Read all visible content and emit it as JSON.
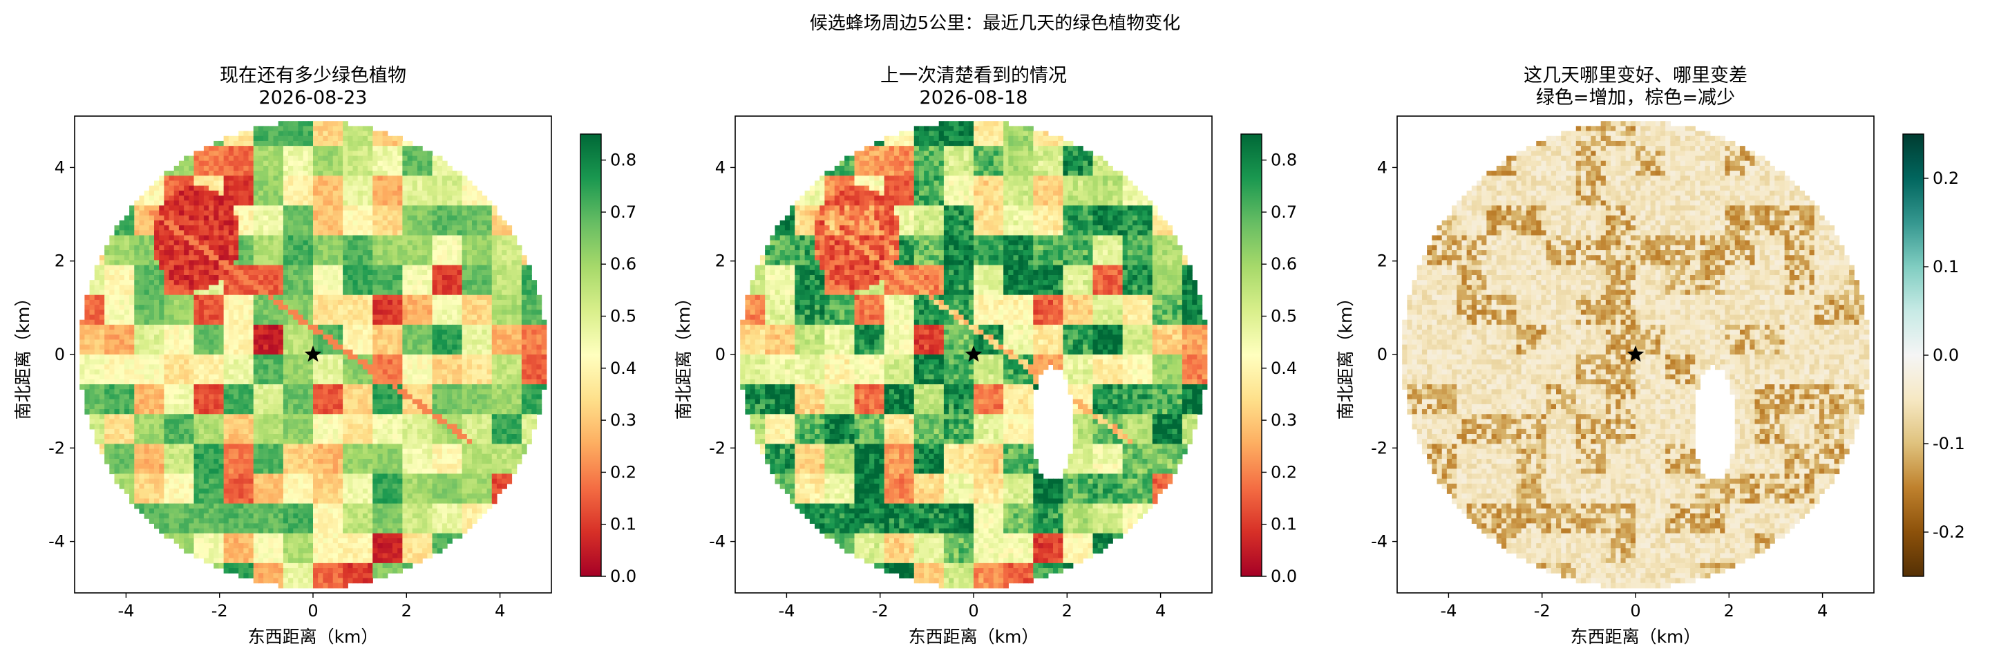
{
  "figure": {
    "suptitle": "候选蜂场周边5公里：最近几天的绿色植物变化"
  },
  "chart_data": [
    {
      "type": "heatmap",
      "title": "现在还有多少绿色植物",
      "subtitle": "2026-08-23",
      "xlabel": "东西距离（km）",
      "ylabel": "南北距离（km）",
      "xlim": [
        -5.1,
        5.1
      ],
      "ylim": [
        -5.1,
        5.1
      ],
      "xticks": [
        -4,
        -2,
        0,
        2,
        4
      ],
      "yticks": [
        -4,
        -2,
        0,
        2,
        4
      ],
      "xtick_labels": [
        "-4",
        "-2",
        "0",
        "2",
        "4"
      ],
      "ytick_labels": [
        "-4",
        "-2",
        "0",
        "2",
        "4"
      ],
      "radius_km": 5,
      "center_marker": {
        "x": 0,
        "y": 0,
        "symbol": "star"
      },
      "colormap": "RdYlGn",
      "colorbar": {
        "vmin": 0.0,
        "vmax": 0.85,
        "ticks": [
          0.0,
          0.1,
          0.2,
          0.3,
          0.4,
          0.5,
          0.6,
          0.7,
          0.8
        ],
        "tick_labels": [
          "0.0",
          "0.1",
          "0.2",
          "0.3",
          "0.4",
          "0.5",
          "0.6",
          "0.7",
          "0.8"
        ],
        "colors": [
          "#a50026",
          "#d73027",
          "#f46d43",
          "#fdae61",
          "#fee08b",
          "#ffffbf",
          "#d9ef8b",
          "#a6d96a",
          "#66bd63",
          "#1a9850",
          "#006837"
        ]
      },
      "grid": false
    },
    {
      "type": "heatmap",
      "title": "上一次清楚看到的情况",
      "subtitle": "2026-08-18",
      "xlabel": "东西距离（km）",
      "ylabel": "南北距离（km）",
      "xlim": [
        -5.1,
        5.1
      ],
      "ylim": [
        -5.1,
        5.1
      ],
      "xticks": [
        -4,
        -2,
        0,
        2,
        4
      ],
      "yticks": [
        -4,
        -2,
        0,
        2,
        4
      ],
      "xtick_labels": [
        "-4",
        "-2",
        "0",
        "2",
        "4"
      ],
      "ytick_labels": [
        "-4",
        "-2",
        "0",
        "2",
        "4"
      ],
      "radius_km": 5,
      "center_marker": {
        "x": 0,
        "y": 0,
        "symbol": "star"
      },
      "colormap": "RdYlGn",
      "colorbar": {
        "vmin": 0.0,
        "vmax": 0.85,
        "ticks": [
          0.0,
          0.1,
          0.2,
          0.3,
          0.4,
          0.5,
          0.6,
          0.7,
          0.8
        ],
        "tick_labels": [
          "0.0",
          "0.1",
          "0.2",
          "0.3",
          "0.4",
          "0.5",
          "0.6",
          "0.7",
          "0.8"
        ],
        "colors": [
          "#a50026",
          "#d73027",
          "#f46d43",
          "#fdae61",
          "#fee08b",
          "#ffffbf",
          "#d9ef8b",
          "#a6d96a",
          "#66bd63",
          "#1a9850",
          "#006837"
        ]
      },
      "grid": false
    },
    {
      "type": "heatmap",
      "title": "这几天哪里变好、哪里变差",
      "subtitle": "绿色=增加，棕色=减少",
      "xlabel": "东西距离（km）",
      "ylabel": "南北距离（km）",
      "xlim": [
        -5.1,
        5.1
      ],
      "ylim": [
        -5.1,
        5.1
      ],
      "xticks": [
        -4,
        -2,
        0,
        2,
        4
      ],
      "yticks": [
        -4,
        -2,
        0,
        2,
        4
      ],
      "xtick_labels": [
        "-4",
        "-2",
        "0",
        "2",
        "4"
      ],
      "ytick_labels": [
        "-4",
        "-2",
        "0",
        "2",
        "4"
      ],
      "radius_km": 5,
      "center_marker": {
        "x": 0,
        "y": 0,
        "symbol": "star"
      },
      "colormap": "BrBG",
      "colorbar": {
        "vmin": -0.25,
        "vmax": 0.25,
        "ticks": [
          -0.2,
          -0.1,
          0.0,
          0.1,
          0.2
        ],
        "tick_labels": [
          "-0.2",
          "-0.1",
          "0.0",
          "0.1",
          "0.2"
        ],
        "colors": [
          "#543005",
          "#8c510a",
          "#bf812d",
          "#dfc27d",
          "#f6e8c3",
          "#f5f5f5",
          "#c7eae5",
          "#80cdc1",
          "#35978f",
          "#01665e",
          "#003c30"
        ]
      },
      "grid": false
    }
  ]
}
